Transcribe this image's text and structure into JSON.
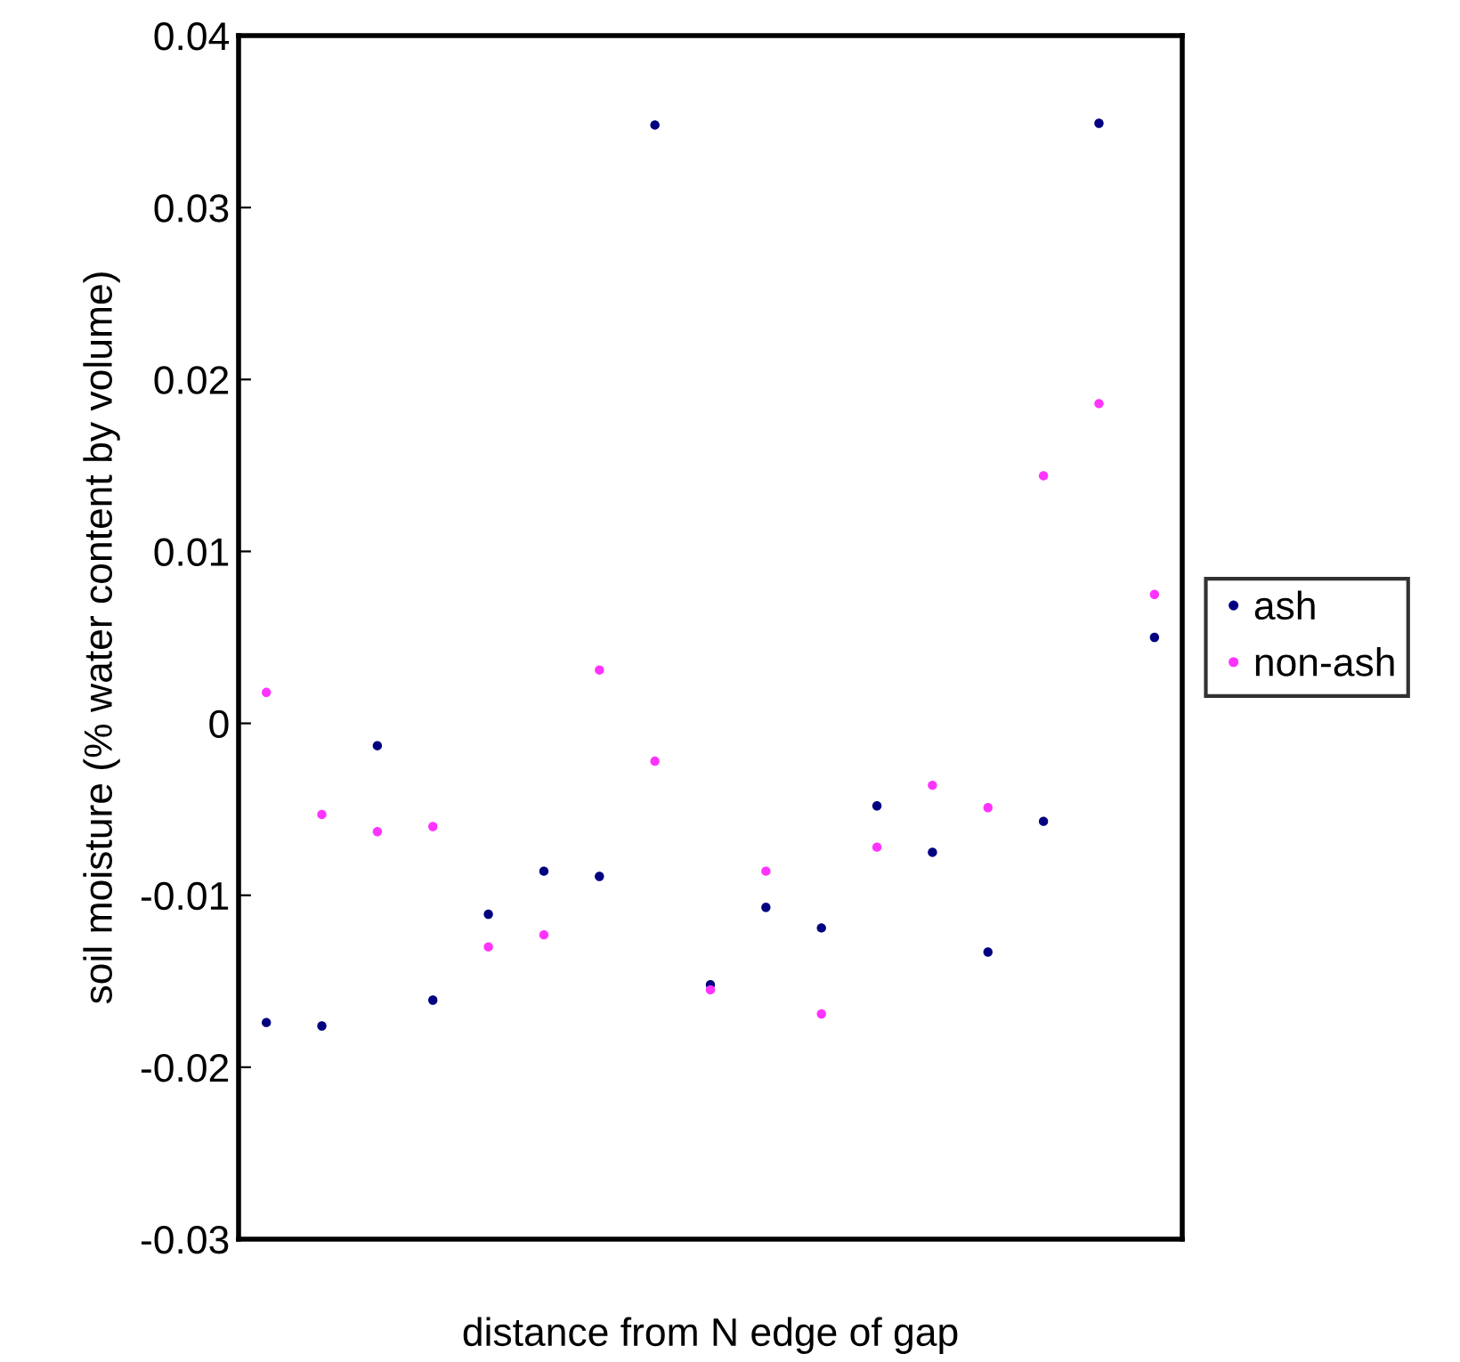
{
  "chart_data": {
    "type": "scatter",
    "xlabel": "distance from N edge of gap",
    "ylabel": "soil moisture (% water content by volume)",
    "categories": [
      null,
      null,
      null,
      null,
      null,
      null,
      null,
      null,
      null,
      null,
      null,
      null,
      null,
      null,
      null,
      null,
      null
    ],
    "series": [
      {
        "name": "ash",
        "color": "#000080",
        "values": [
          -0.0174,
          -0.0176,
          -0.0013,
          -0.0161,
          -0.0111,
          -0.0086,
          -0.0089,
          0.0348,
          -0.0152,
          -0.0107,
          -0.0119,
          -0.0048,
          -0.0075,
          -0.0133,
          -0.0057,
          0.0349,
          0.005
        ]
      },
      {
        "name": "non-ash",
        "color": "#ff33ff",
        "values": [
          0.0018,
          -0.0053,
          -0.0063,
          -0.006,
          -0.013,
          -0.0123,
          0.0031,
          -0.0022,
          -0.0155,
          -0.0086,
          -0.0169,
          -0.0072,
          -0.0036,
          -0.0049,
          0.0144,
          0.0186,
          0.0075
        ]
      }
    ],
    "ylim": [
      -0.03,
      0.04
    ],
    "yticks": [
      -0.03,
      -0.02,
      -0.01,
      0,
      0.01,
      0.02,
      0.03,
      0.04
    ],
    "marker": "circle",
    "grid": false,
    "legend": "right"
  }
}
